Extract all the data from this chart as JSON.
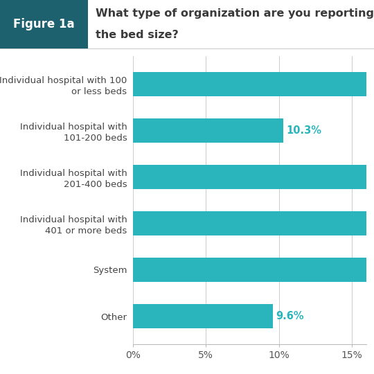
{
  "title_box_label": "Figure 1a",
  "title_line1": "What type of organization are you reporting d",
  "title_line2": "the bed size?",
  "categories": [
    "Individual hospital with 100\nor less beds",
    "Individual hospital with\n101-200 beds",
    "Individual hospital with\n201-400 beds",
    "Individual hospital with\n401 or more beds",
    "System",
    "Other"
  ],
  "values": [
    17.5,
    10.3,
    17.5,
    17.5,
    17.5,
    9.6
  ],
  "bar_labels": [
    "",
    "10.3%",
    "",
    "",
    "",
    "9.6%"
  ],
  "bar_color": "#2ab5bc",
  "header_bg_color": "#1d616e",
  "header_text_color": "#ffffff",
  "title_text_color": "#3a3a3a",
  "background_color": "#ffffff",
  "tick_label_color": "#555555",
  "yticklabel_color": "#444444",
  "bar_label_color": "#2ab5bc",
  "xmin": 0,
  "xmax": 16,
  "xticks": [
    0,
    5,
    10,
    15
  ],
  "xtick_labels": [
    "0%",
    "5%",
    "10%",
    "15%"
  ],
  "bar_height": 0.52,
  "figsize": [
    5.4,
    5.4
  ],
  "dpi": 100,
  "ylabel_fontsize": 9.5,
  "title_fontsize": 11.5,
  "figure_label_fontsize": 12,
  "bar_label_fontsize": 10.5,
  "tick_label_fontsize": 10,
  "grid_color": "#cccccc",
  "bottom_spine_color": "#bbbbbb"
}
